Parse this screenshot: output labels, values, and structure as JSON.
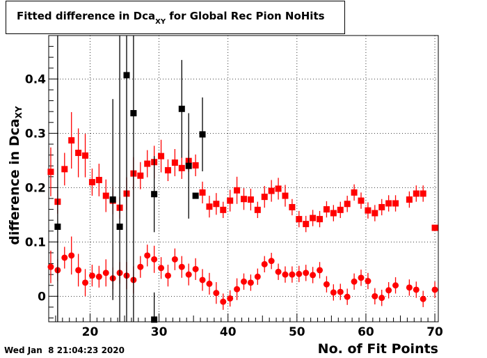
{
  "title": {
    "main": "Fitted difference in Dca",
    "sub": "XY",
    "suffix": " for Global Rec Pion NoHits"
  },
  "ylabel": {
    "main": "difference in Dca",
    "sub": "XY"
  },
  "xlabel": "No. of Fit Points",
  "timestamp": "Wed Jan  8 21:04:23 2020",
  "chart_data": {
    "type": "scatter",
    "xlim": [
      14,
      70.5
    ],
    "ylim": [
      -0.047,
      0.48
    ],
    "xticks": [
      20,
      30,
      40,
      50,
      60,
      70
    ],
    "yticks": [
      0,
      0.1,
      0.2,
      0.3,
      0.4
    ],
    "grid": true,
    "series": [
      {
        "color": "#ff0000",
        "marker": "square",
        "points": [
          {
            "x": 14.3,
            "y": 0.229,
            "e": 0.045
          },
          {
            "x": 15.3,
            "y": 0.174,
            "e": 0.022
          },
          {
            "x": 16.3,
            "y": 0.234,
            "e": 0.03
          },
          {
            "x": 17.3,
            "y": 0.287,
            "e": 0.052
          },
          {
            "x": 18.3,
            "y": 0.264,
            "e": 0.045
          },
          {
            "x": 19.3,
            "y": 0.259,
            "e": 0.04
          },
          {
            "x": 20.3,
            "y": 0.21,
            "e": 0.025
          },
          {
            "x": 21.3,
            "y": 0.214,
            "e": 0.03
          },
          {
            "x": 22.3,
            "y": 0.185,
            "e": 0.03
          },
          {
            "x": 23.3,
            "y": 0.176,
            "e": 0.025
          },
          {
            "x": 24.3,
            "y": 0.163,
            "e": 0.02
          },
          {
            "x": 25.3,
            "y": 0.189,
            "e": 0.03
          },
          {
            "x": 26.3,
            "y": 0.226,
            "e": 0.03
          },
          {
            "x": 27.3,
            "y": 0.222,
            "e": 0.025
          },
          {
            "x": 28.3,
            "y": 0.244,
            "e": 0.025
          },
          {
            "x": 29.3,
            "y": 0.247,
            "e": 0.03
          },
          {
            "x": 30.3,
            "y": 0.258,
            "e": 0.03
          },
          {
            "x": 31.3,
            "y": 0.232,
            "e": 0.02
          },
          {
            "x": 32.3,
            "y": 0.246,
            "e": 0.025
          },
          {
            "x": 33.3,
            "y": 0.236,
            "e": 0.02
          },
          {
            "x": 34.3,
            "y": 0.249,
            "e": 0.02
          },
          {
            "x": 35.3,
            "y": 0.241,
            "e": 0.02
          },
          {
            "x": 36.3,
            "y": 0.191,
            "e": 0.02
          },
          {
            "x": 37.3,
            "y": 0.165,
            "e": 0.02
          },
          {
            "x": 38.3,
            "y": 0.17,
            "e": 0.02
          },
          {
            "x": 39.3,
            "y": 0.159,
            "e": 0.015
          },
          {
            "x": 40.3,
            "y": 0.176,
            "e": 0.02
          },
          {
            "x": 41.3,
            "y": 0.195,
            "e": 0.025
          },
          {
            "x": 42.3,
            "y": 0.179,
            "e": 0.02
          },
          {
            "x": 43.3,
            "y": 0.178,
            "e": 0.02
          },
          {
            "x": 44.3,
            "y": 0.159,
            "e": 0.015
          },
          {
            "x": 45.3,
            "y": 0.183,
            "e": 0.02
          },
          {
            "x": 46.3,
            "y": 0.194,
            "e": 0.02
          },
          {
            "x": 47.3,
            "y": 0.198,
            "e": 0.02
          },
          {
            "x": 48.3,
            "y": 0.185,
            "e": 0.02
          },
          {
            "x": 49.3,
            "y": 0.164,
            "e": 0.015
          },
          {
            "x": 50.3,
            "y": 0.142,
            "e": 0.015
          },
          {
            "x": 51.3,
            "y": 0.133,
            "e": 0.015
          },
          {
            "x": 52.3,
            "y": 0.144,
            "e": 0.015
          },
          {
            "x": 53.3,
            "y": 0.142,
            "e": 0.015
          },
          {
            "x": 54.3,
            "y": 0.16,
            "e": 0.015
          },
          {
            "x": 55.3,
            "y": 0.153,
            "e": 0.015
          },
          {
            "x": 56.3,
            "y": 0.159,
            "e": 0.015
          },
          {
            "x": 57.3,
            "y": 0.17,
            "e": 0.015
          },
          {
            "x": 58.3,
            "y": 0.191,
            "e": 0.015
          },
          {
            "x": 59.3,
            "y": 0.176,
            "e": 0.015
          },
          {
            "x": 60.3,
            "y": 0.158,
            "e": 0.015
          },
          {
            "x": 61.3,
            "y": 0.153,
            "e": 0.015
          },
          {
            "x": 62.3,
            "y": 0.164,
            "e": 0.015
          },
          {
            "x": 63.3,
            "y": 0.171,
            "e": 0.015
          },
          {
            "x": 64.3,
            "y": 0.171,
            "e": 0.015
          },
          {
            "x": 66.3,
            "y": 0.178,
            "e": 0.015
          },
          {
            "x": 67.3,
            "y": 0.189,
            "e": 0.015
          },
          {
            "x": 68.3,
            "y": 0.189,
            "e": 0.015
          },
          {
            "x": 70.0,
            "y": 0.126,
            "e": 0.0
          }
        ]
      },
      {
        "color": "#ff0000",
        "marker": "circle",
        "points": [
          {
            "x": 14.3,
            "y": 0.054,
            "e": 0.03
          },
          {
            "x": 15.3,
            "y": 0.048,
            "e": 0.02
          },
          {
            "x": 16.3,
            "y": 0.071,
            "e": 0.02
          },
          {
            "x": 17.3,
            "y": 0.075,
            "e": 0.035
          },
          {
            "x": 18.3,
            "y": 0.048,
            "e": 0.03
          },
          {
            "x": 19.3,
            "y": 0.025,
            "e": 0.025
          },
          {
            "x": 20.3,
            "y": 0.038,
            "e": 0.02
          },
          {
            "x": 21.3,
            "y": 0.036,
            "e": 0.02
          },
          {
            "x": 22.3,
            "y": 0.043,
            "e": 0.025
          },
          {
            "x": 23.3,
            "y": 0.033,
            "e": 0.02
          },
          {
            "x": 24.3,
            "y": 0.043,
            "e": 0.02
          },
          {
            "x": 25.3,
            "y": 0.038,
            "e": 0.025
          },
          {
            "x": 26.3,
            "y": 0.03,
            "e": 0.025
          },
          {
            "x": 27.3,
            "y": 0.054,
            "e": 0.02
          },
          {
            "x": 28.3,
            "y": 0.075,
            "e": 0.02
          },
          {
            "x": 29.3,
            "y": 0.068,
            "e": 0.025
          },
          {
            "x": 30.3,
            "y": 0.052,
            "e": 0.02
          },
          {
            "x": 31.3,
            "y": 0.038,
            "e": 0.02
          },
          {
            "x": 32.3,
            "y": 0.068,
            "e": 0.02
          },
          {
            "x": 33.3,
            "y": 0.054,
            "e": 0.02
          },
          {
            "x": 34.3,
            "y": 0.04,
            "e": 0.02
          },
          {
            "x": 35.3,
            "y": 0.05,
            "e": 0.02
          },
          {
            "x": 36.3,
            "y": 0.03,
            "e": 0.02
          },
          {
            "x": 37.3,
            "y": 0.023,
            "e": 0.02
          },
          {
            "x": 38.3,
            "y": 0.006,
            "e": 0.02
          },
          {
            "x": 39.3,
            "y": -0.01,
            "e": 0.015
          },
          {
            "x": 40.3,
            "y": -0.004,
            "e": 0.015
          },
          {
            "x": 41.3,
            "y": 0.013,
            "e": 0.02
          },
          {
            "x": 42.3,
            "y": 0.027,
            "e": 0.015
          },
          {
            "x": 43.3,
            "y": 0.025,
            "e": 0.015
          },
          {
            "x": 44.3,
            "y": 0.036,
            "e": 0.015
          },
          {
            "x": 45.3,
            "y": 0.059,
            "e": 0.015
          },
          {
            "x": 46.3,
            "y": 0.065,
            "e": 0.015
          },
          {
            "x": 47.3,
            "y": 0.045,
            "e": 0.015
          },
          {
            "x": 48.3,
            "y": 0.04,
            "e": 0.015
          },
          {
            "x": 49.3,
            "y": 0.04,
            "e": 0.015
          },
          {
            "x": 50.3,
            "y": 0.041,
            "e": 0.015
          },
          {
            "x": 51.3,
            "y": 0.043,
            "e": 0.015
          },
          {
            "x": 52.3,
            "y": 0.039,
            "e": 0.015
          },
          {
            "x": 53.3,
            "y": 0.048,
            "e": 0.015
          },
          {
            "x": 54.3,
            "y": 0.022,
            "e": 0.015
          },
          {
            "x": 55.3,
            "y": 0.007,
            "e": 0.015
          },
          {
            "x": 56.3,
            "y": 0.008,
            "e": 0.015
          },
          {
            "x": 57.3,
            "y": -0.001,
            "e": 0.015
          },
          {
            "x": 58.3,
            "y": 0.027,
            "e": 0.015
          },
          {
            "x": 59.3,
            "y": 0.034,
            "e": 0.015
          },
          {
            "x": 60.3,
            "y": 0.028,
            "e": 0.015
          },
          {
            "x": 61.3,
            "y": 0.0,
            "e": 0.015
          },
          {
            "x": 62.3,
            "y": -0.003,
            "e": 0.015
          },
          {
            "x": 63.3,
            "y": 0.011,
            "e": 0.015
          },
          {
            "x": 64.3,
            "y": 0.02,
            "e": 0.015
          },
          {
            "x": 66.3,
            "y": 0.016,
            "e": 0.015
          },
          {
            "x": 67.3,
            "y": 0.012,
            "e": 0.015
          },
          {
            "x": 68.3,
            "y": -0.005,
            "e": 0.015
          },
          {
            "x": 70.0,
            "y": 0.012,
            "e": 0.015
          }
        ]
      },
      {
        "color": "#000000",
        "marker": "square",
        "points": [
          {
            "x": 15.3,
            "y": 0.128,
            "e": 0.6
          },
          {
            "x": 23.3,
            "y": 0.178,
            "e": 0.185
          },
          {
            "x": 24.3,
            "y": 0.128,
            "e": 0.6
          },
          {
            "x": 25.3,
            "y": 0.407,
            "e": 0.6
          },
          {
            "x": 26.3,
            "y": 0.337,
            "e": 0.6
          },
          {
            "x": 29.3,
            "y": 0.188,
            "e": 0.07
          },
          {
            "x": 29.3,
            "y": -0.043,
            "e": 0.05
          },
          {
            "x": 33.3,
            "y": 0.345,
            "e": 0.09
          },
          {
            "x": 34.3,
            "y": 0.24,
            "e": 0.097
          },
          {
            "x": 35.3,
            "y": 0.185,
            "e": 0.0
          },
          {
            "x": 36.3,
            "y": 0.298,
            "e": 0.068
          }
        ]
      }
    ]
  }
}
